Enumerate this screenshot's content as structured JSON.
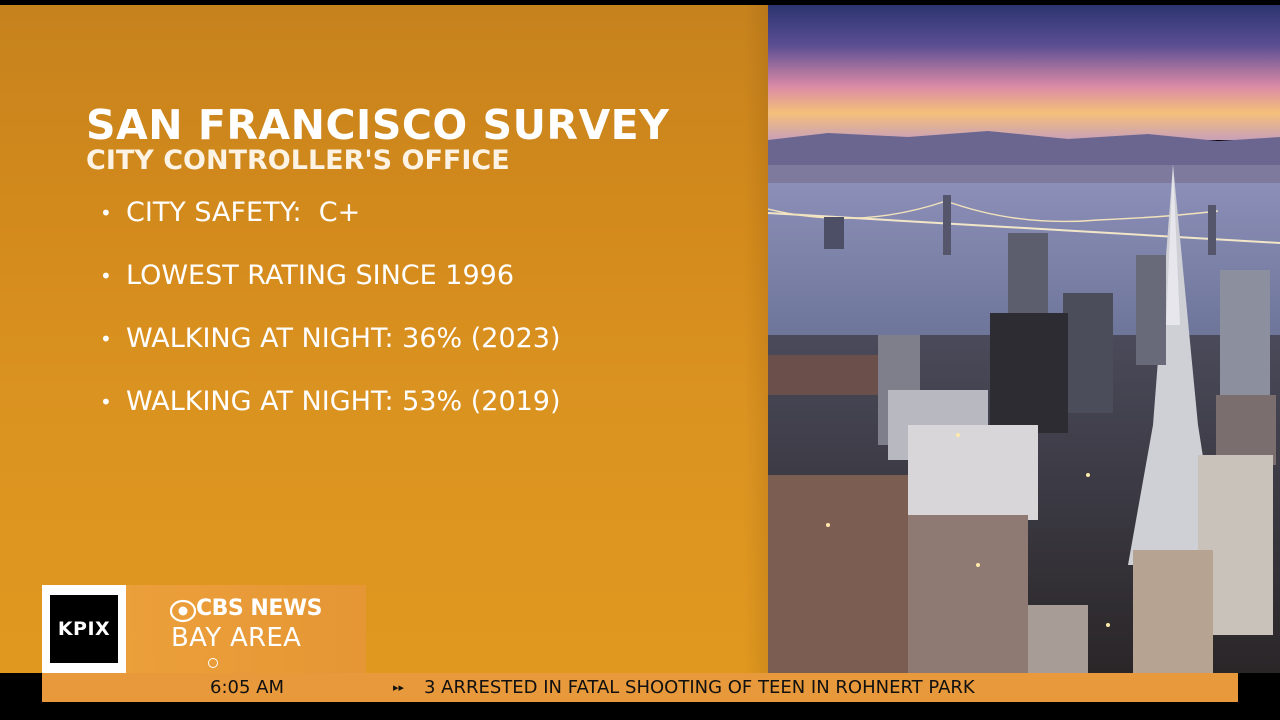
{
  "slide": {
    "title": "SAN FRANCISCO SURVEY",
    "subtitle": "CITY CONTROLLER'S OFFICE",
    "bullets": [
      "CITY SAFETY:  C+",
      "LOWEST RATING SINCE 1996",
      "WALKING AT NIGHT: 36% (2023)",
      "WALKING AT NIGHT: 53% (2019)"
    ],
    "bullet_symbol": "•"
  },
  "branding": {
    "station": "KPIX",
    "network": "CBS NEWS",
    "region": "BAY AREA"
  },
  "ticker": {
    "time": "6:05 AM",
    "arrows": "▸▸",
    "headline": "3 ARRESTED IN FATAL SHOOTING OF TEEN IN ROHNERT PARK"
  },
  "colors": {
    "panel": "#d48b1c",
    "ticker": "#e8993b",
    "brand": "#eca03c"
  },
  "icons": [
    "cbs-eye-icon",
    "bullet-dot-icon",
    "ticker-arrow-icon"
  ]
}
